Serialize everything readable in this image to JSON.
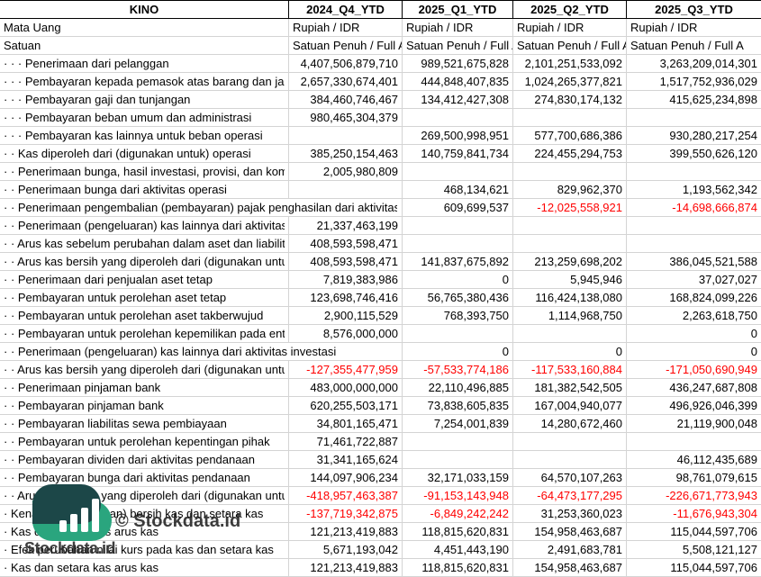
{
  "table": {
    "company": "KINO",
    "columns": [
      "2024_Q4_YTD",
      "2025_Q1_YTD",
      "2025_Q2_YTD",
      "2025_Q3_YTD"
    ],
    "meta_rows": [
      {
        "label": "Mata Uang",
        "values": [
          "Rupiah / IDR",
          "Rupiah / IDR",
          "Rupiah / IDR",
          "Rupiah / IDR"
        ]
      },
      {
        "label": "Satuan",
        "values": [
          "Satuan Penuh / Full A",
          "Satuan Penuh / Full A",
          "Satuan Penuh / Full A",
          "Satuan Penuh / Full A"
        ]
      }
    ],
    "rows": [
      {
        "label": "· · · Penerimaan dari pelanggan",
        "values": [
          "4,407,506,879,710",
          "989,521,675,828",
          "2,101,251,533,092",
          "3,263,209,014,301"
        ]
      },
      {
        "label": "· · · Pembayaran kepada pemasok atas barang dan jasa",
        "values": [
          "2,657,330,674,401",
          "444,848,407,835",
          "1,024,265,377,821",
          "1,517,752,936,029"
        ]
      },
      {
        "label": "· · · Pembayaran gaji dan tunjangan",
        "values": [
          "384,460,746,467",
          "134,412,427,308",
          "274,830,174,132",
          "415,625,234,898"
        ]
      },
      {
        "label": "· · · Pembayaran beban umum dan administrasi",
        "values": [
          "980,465,304,379",
          "",
          "",
          ""
        ]
      },
      {
        "label": "· · · Pembayaran kas lainnya untuk beban operasi",
        "values": [
          "",
          "269,500,998,951",
          "577,700,686,386",
          "930,280,217,254"
        ]
      },
      {
        "label": "· · Kas diperoleh dari (digunakan untuk) operasi",
        "values": [
          "385,250,154,463",
          "140,759,841,734",
          "224,455,294,753",
          "399,550,626,120"
        ]
      },
      {
        "label": "· · Penerimaan bunga, hasil investasi, provisi, dan komisi",
        "values": [
          "2,005,980,809",
          "",
          "",
          ""
        ]
      },
      {
        "label": "· · Penerimaan bunga dari aktivitas operasi",
        "values": [
          "",
          "468,134,621",
          "829,962,370",
          "1,193,562,342"
        ]
      },
      {
        "label": "· · Penerimaan pengembalian (pembayaran) pajak penghasilan dari aktivitas",
        "values": [
          "",
          "609,699,537",
          "-12,025,558,921",
          "-14,698,666,874"
        ]
      },
      {
        "label": "· · Penerimaan (pengeluaran) kas lainnya dari aktivitas",
        "values": [
          "21,337,463,199",
          "",
          "",
          ""
        ]
      },
      {
        "label": "· · Arus kas sebelum perubahan dalam aset dan liabilitas",
        "values": [
          "408,593,598,471",
          "",
          "",
          ""
        ]
      },
      {
        "label": "· · Arus kas bersih yang diperoleh dari (digunakan untuk)",
        "values": [
          "408,593,598,471",
          "141,837,675,892",
          "213,259,698,202",
          "386,045,521,588"
        ]
      },
      {
        "label": "· · Penerimaan dari penjualan aset tetap",
        "values": [
          "7,819,383,986",
          "0",
          "5,945,946",
          "37,027,027"
        ]
      },
      {
        "label": "· · Pembayaran untuk perolehan aset tetap",
        "values": [
          "123,698,746,416",
          "56,765,380,436",
          "116,424,138,080",
          "168,824,099,226"
        ]
      },
      {
        "label": "· · Pembayaran untuk perolehan aset takberwujud",
        "values": [
          "2,900,115,529",
          "768,393,750",
          "1,114,968,750",
          "2,263,618,750"
        ]
      },
      {
        "label": "· · Pembayaran untuk perolehan kepemilikan pada entitas",
        "values": [
          "8,576,000,000",
          "",
          "",
          "0"
        ]
      },
      {
        "label": "· · Penerimaan (pengeluaran) kas lainnya dari aktivitas investasi",
        "values": [
          "",
          "0",
          "0",
          "0"
        ]
      },
      {
        "label": "· · Arus kas bersih yang diperoleh dari (digunakan untuk)",
        "values": [
          "-127,355,477,959",
          "-57,533,774,186",
          "-117,533,160,884",
          "-171,050,690,949"
        ]
      },
      {
        "label": "· · Penerimaan pinjaman bank",
        "values": [
          "483,000,000,000",
          "22,110,496,885",
          "181,382,542,505",
          "436,247,687,808"
        ]
      },
      {
        "label": "· · Pembayaran pinjaman bank",
        "values": [
          "620,255,503,171",
          "73,838,605,835",
          "167,004,940,077",
          "496,926,046,399"
        ]
      },
      {
        "label": "· · Pembayaran liabilitas sewa pembiayaan",
        "values": [
          "34,801,165,471",
          "7,254,001,839",
          "14,280,672,460",
          "21,119,900,048"
        ]
      },
      {
        "label": "· · Pembayaran untuk perolehan kepentingan pihak",
        "values": [
          "71,461,722,887",
          "",
          "",
          ""
        ]
      },
      {
        "label": "· · Pembayaran dividen dari aktivitas pendanaan",
        "values": [
          "31,341,165,624",
          "",
          "",
          "46,112,435,689"
        ]
      },
      {
        "label": "· · Pembayaran bunga dari aktivitas pendanaan",
        "values": [
          "144,097,906,234",
          "32,171,033,159",
          "64,570,107,263",
          "98,761,079,615"
        ]
      },
      {
        "label": "· · Arus kas bersih yang diperoleh dari (digunakan untuk)",
        "values": [
          "-418,957,463,387",
          "-91,153,143,948",
          "-64,473,177,295",
          "-226,671,773,943"
        ]
      },
      {
        "label": "· Kenaikan (penurunan) bersih kas dan setara kas",
        "values": [
          "-137,719,342,875",
          "-6,849,242,242",
          "31,253,360,023",
          "-11,676,943,304"
        ]
      },
      {
        "label": "· Kas dan setara kas arus kas",
        "values": [
          "121,213,419,883",
          "118,815,620,831",
          "154,958,463,687",
          "115,044,597,706"
        ]
      },
      {
        "label": "· Efek perubahan nilai kurs pada kas dan setara kas",
        "values": [
          "5,671,193,042",
          "4,451,443,190",
          "2,491,683,781",
          "5,508,121,127"
        ]
      },
      {
        "label": "· Kas dan setara kas arus kas",
        "values": [
          "121,213,419,883",
          "118,815,620,831",
          "154,958,463,687",
          "115,044,597,706"
        ]
      }
    ]
  },
  "watermark": {
    "center_text": "© Stockdata.id",
    "logo_text": "Stockdata.id"
  },
  "colors": {
    "negative_value": "#ff0000",
    "grid_line": "#d4d4d4",
    "header_border": "#000000",
    "logo_dark_teal": "#1c4748",
    "logo_green": "#2aa57e"
  }
}
